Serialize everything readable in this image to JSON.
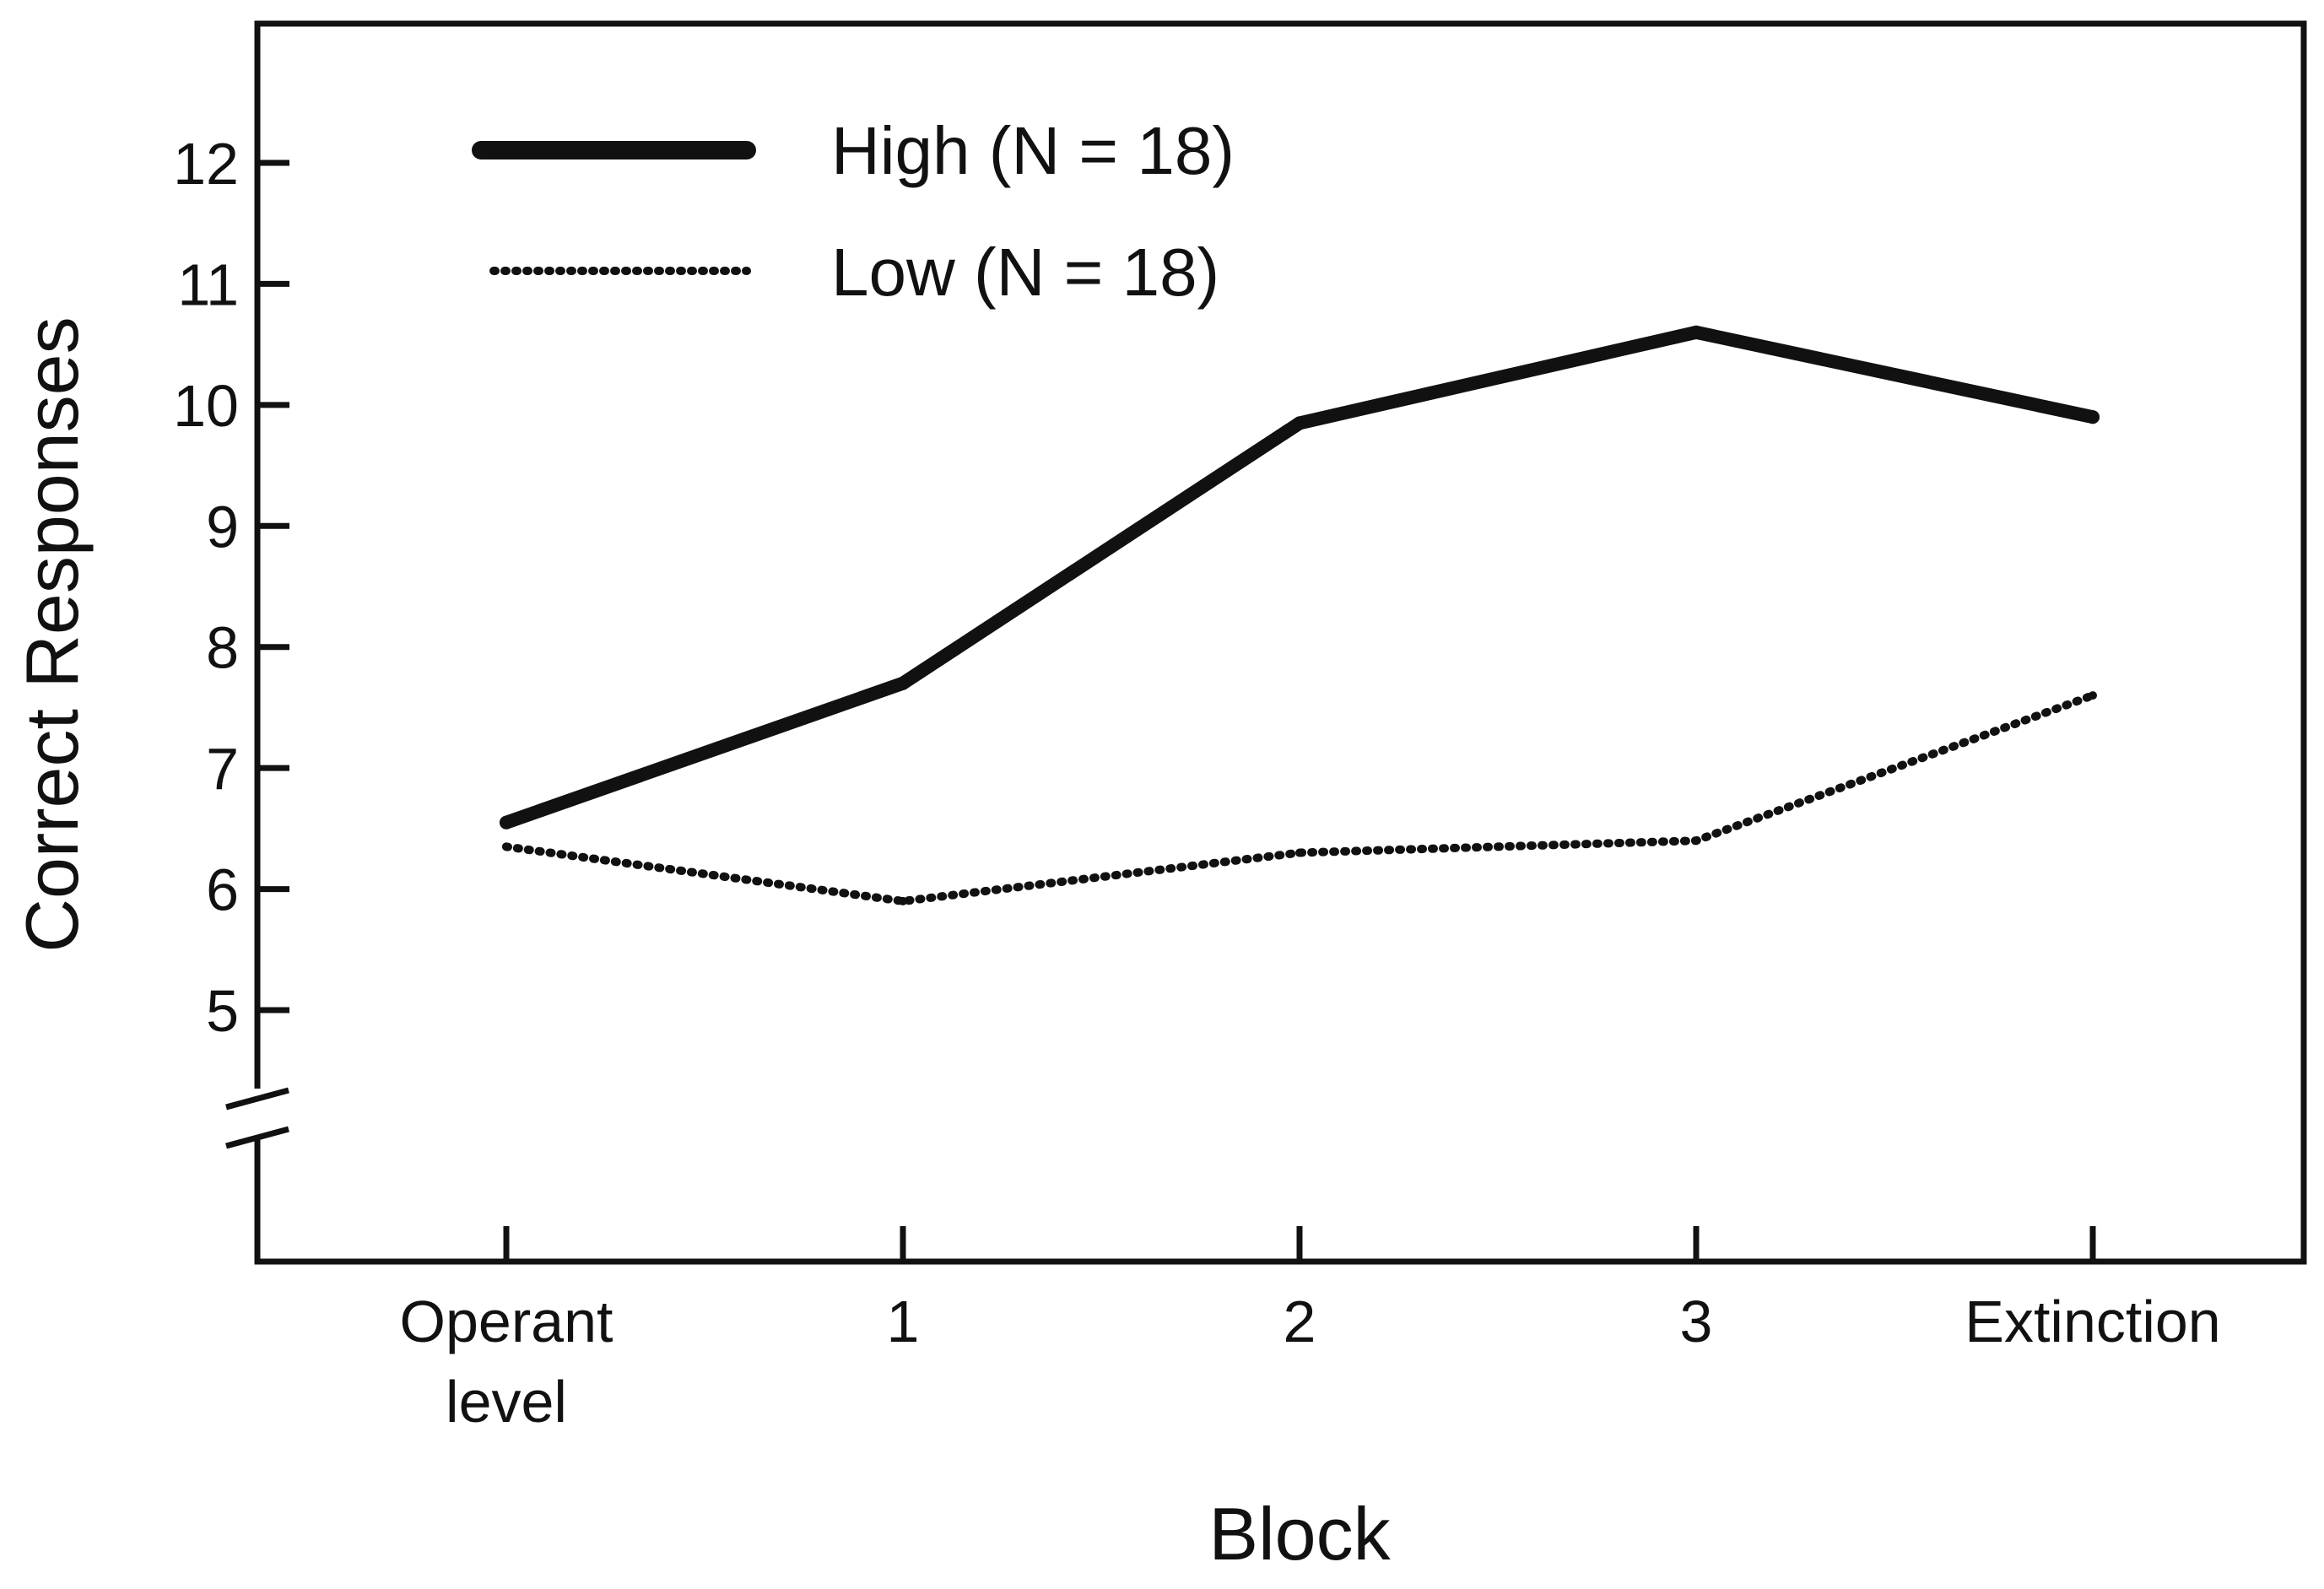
{
  "chart_data": {
    "type": "line",
    "xlabel": "Block",
    "ylabel": "Correct Responses",
    "categories": [
      [
        "Operant",
        "level"
      ],
      [
        "1"
      ],
      [
        "2"
      ],
      [
        "3"
      ],
      [
        "Extinction"
      ]
    ],
    "ylim": [
      4,
      13
    ],
    "y_ticks": [
      5,
      6,
      7,
      8,
      9,
      10,
      11,
      12
    ],
    "y_axis_break": true,
    "grid": false,
    "legend_position": "top-left",
    "series": [
      {
        "name": "High (N = 18)",
        "style": "solid",
        "values": [
          6.55,
          7.7,
          9.85,
          10.6,
          9.9
        ]
      },
      {
        "name": "Low (N = 18)",
        "style": "dotted",
        "values": [
          6.35,
          5.9,
          6.3,
          6.4,
          7.6
        ]
      }
    ],
    "colors": {
      "line": "#111111",
      "background": "#ffffff"
    }
  }
}
